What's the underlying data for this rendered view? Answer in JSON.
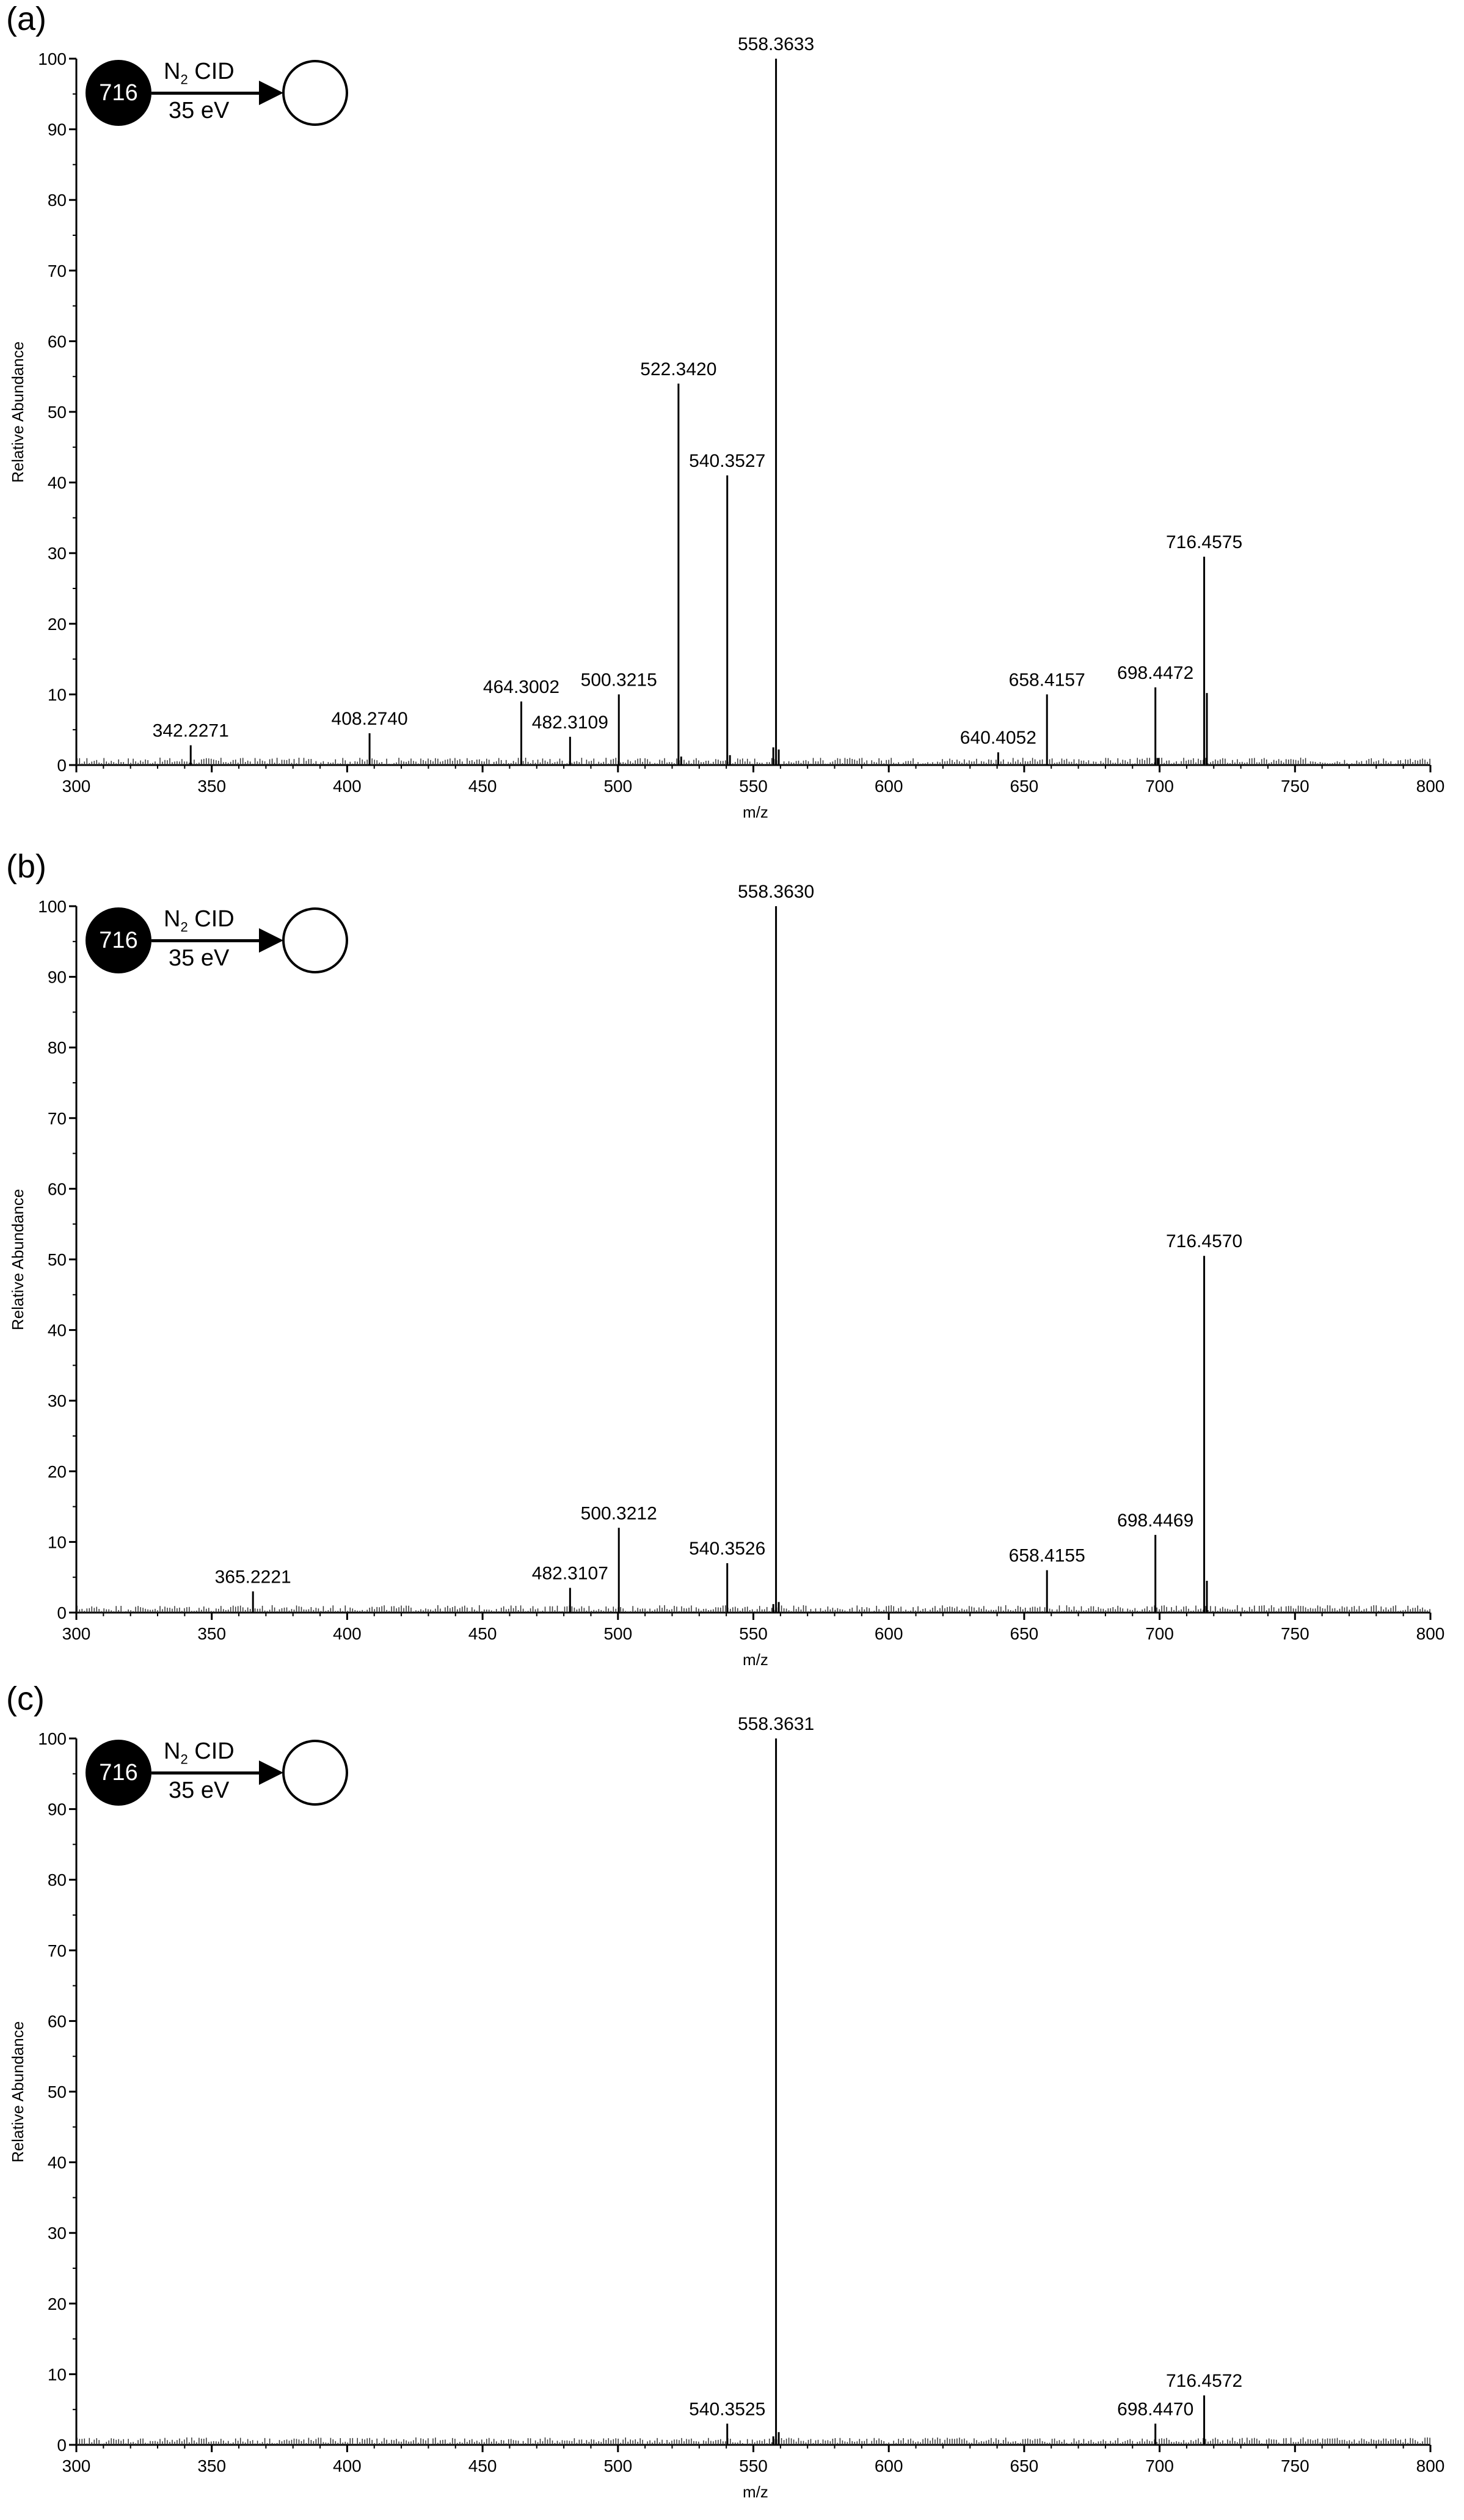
{
  "chart_data": [
    {
      "type": "bar",
      "panel_label": "(a)",
      "xlabel": "m/z",
      "ylabel": "Relative Abundance",
      "xlim": [
        300,
        800
      ],
      "ylim": [
        0,
        100
      ],
      "xticks": [
        "300",
        "350",
        "400",
        "450",
        "500",
        "550",
        "600",
        "650",
        "700",
        "750",
        "800"
      ],
      "yticks": [
        "0",
        "10",
        "20",
        "30",
        "40",
        "50",
        "60",
        "70",
        "80",
        "90",
        "100"
      ],
      "precursor": "716",
      "activation": {
        "method": "N",
        "subscript": "2",
        "method_suffix": " CID",
        "energy": "35 eV"
      },
      "peaks": [
        {
          "mz": 342.2271,
          "y": 2.8,
          "label": "342.2271"
        },
        {
          "mz": 408.274,
          "y": 4.5,
          "label": "408.2740"
        },
        {
          "mz": 464.3002,
          "y": 9,
          "label": "464.3002"
        },
        {
          "mz": 482.3109,
          "y": 4,
          "label": "482.3109"
        },
        {
          "mz": 500.3215,
          "y": 10,
          "label": "500.3215"
        },
        {
          "mz": 522.342,
          "y": 54,
          "label": "522.3420"
        },
        {
          "mz": 540.3527,
          "y": 41,
          "label": "540.3527"
        },
        {
          "mz": 558.3633,
          "y": 100,
          "label": "558.3633"
        },
        {
          "mz": 640.4052,
          "y": 1.8,
          "label": "640.4052"
        },
        {
          "mz": 658.4157,
          "y": 10,
          "label": "658.4157"
        },
        {
          "mz": 698.4472,
          "y": 11,
          "label": "698.4472"
        },
        {
          "mz": 716.4575,
          "y": 29.5,
          "label": "716.4575"
        }
      ],
      "minor_peaks": [
        {
          "mz": 541.35,
          "y": 1.4
        },
        {
          "mz": 557.36,
          "y": 2.5
        },
        {
          "mz": 559.37,
          "y": 2.2
        },
        {
          "mz": 523.34,
          "y": 1.2
        },
        {
          "mz": 717.46,
          "y": 10.2
        },
        {
          "mz": 699.45,
          "y": 1.0
        }
      ]
    },
    {
      "type": "bar",
      "panel_label": "(b)",
      "xlabel": "m/z",
      "ylabel": "Relative Abundance",
      "xlim": [
        300,
        800
      ],
      "ylim": [
        0,
        100
      ],
      "xticks": [
        "300",
        "350",
        "400",
        "450",
        "500",
        "550",
        "600",
        "650",
        "700",
        "750",
        "800"
      ],
      "yticks": [
        "0",
        "10",
        "20",
        "30",
        "40",
        "50",
        "60",
        "70",
        "80",
        "90",
        "100"
      ],
      "precursor": "716",
      "activation": {
        "method": "N",
        "subscript": "2",
        "method_suffix": " CID",
        "energy": "35 eV"
      },
      "peaks": [
        {
          "mz": 365.2221,
          "y": 3,
          "label": "365.2221"
        },
        {
          "mz": 482.3107,
          "y": 3.5,
          "label": "482.3107"
        },
        {
          "mz": 500.3212,
          "y": 12,
          "label": "500.3212"
        },
        {
          "mz": 540.3526,
          "y": 7,
          "label": "540.3526"
        },
        {
          "mz": 558.363,
          "y": 100,
          "label": "558.3630"
        },
        {
          "mz": 658.4155,
          "y": 6,
          "label": "658.4155"
        },
        {
          "mz": 698.4469,
          "y": 11,
          "label": "698.4469"
        },
        {
          "mz": 716.457,
          "y": 50.5,
          "label": "716.4570"
        }
      ],
      "minor_peaks": [
        {
          "mz": 717.46,
          "y": 4.5
        },
        {
          "mz": 559.37,
          "y": 1.5
        },
        {
          "mz": 557.36,
          "y": 1.2
        }
      ]
    },
    {
      "type": "bar",
      "panel_label": "(c)",
      "xlabel": "m/z",
      "ylabel": "Relative Abundance",
      "xlim": [
        300,
        800
      ],
      "ylim": [
        0,
        100
      ],
      "xticks": [
        "300",
        "350",
        "400",
        "450",
        "500",
        "550",
        "600",
        "650",
        "700",
        "750",
        "800"
      ],
      "yticks": [
        "0",
        "10",
        "20",
        "30",
        "40",
        "50",
        "60",
        "70",
        "80",
        "90",
        "100"
      ],
      "precursor": "716",
      "activation": {
        "method": "N",
        "subscript": "2",
        "method_suffix": " CID",
        "energy": "35 eV"
      },
      "peaks": [
        {
          "mz": 540.3525,
          "y": 3,
          "label": "540.3525"
        },
        {
          "mz": 558.3631,
          "y": 100,
          "label": "558.3631"
        },
        {
          "mz": 698.447,
          "y": 3,
          "label": "698.4470"
        },
        {
          "mz": 716.4572,
          "y": 7,
          "label": "716.4572"
        }
      ],
      "minor_peaks": [
        {
          "mz": 559.37,
          "y": 1.8
        },
        {
          "mz": 557.36,
          "y": 1.2
        }
      ]
    }
  ]
}
